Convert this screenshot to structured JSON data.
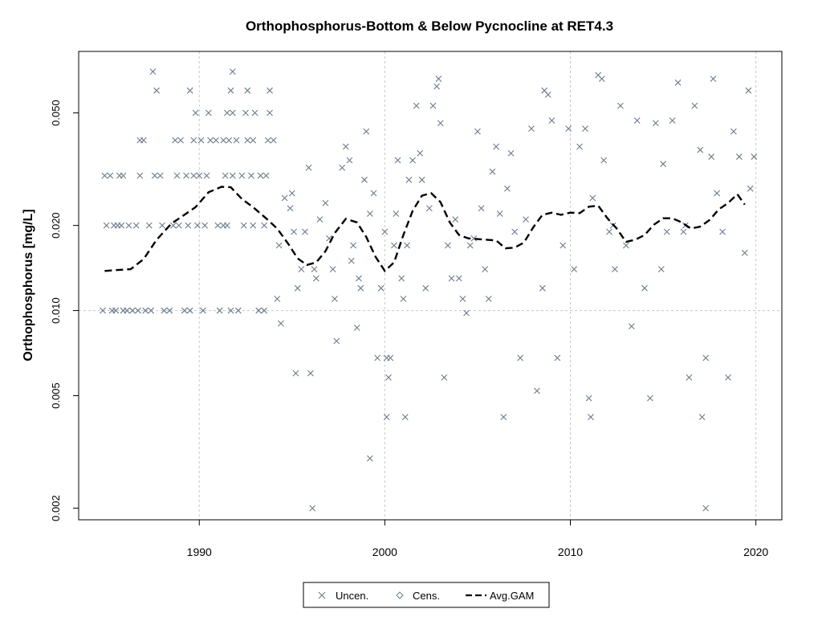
{
  "chart_data": {
    "type": "scatter",
    "title": "Orthophosphorus-Bottom & Below Pycnocline at RET4.3",
    "xlabel": "",
    "ylabel": "Orthophosphorus [mg/L]",
    "x_scale": "linear",
    "y_scale": "log",
    "xlim": [
      1983.5,
      2021.4
    ],
    "ylim": [
      0.00182,
      0.0825
    ],
    "x_ticks": [
      "1990",
      "2000",
      "2010",
      "2020"
    ],
    "x_tick_values": [
      1990,
      2000,
      2010,
      2020
    ],
    "y_ticks": [
      "0.002",
      "0.005",
      "0.010",
      "0.020",
      "0.050"
    ],
    "y_tick_values": [
      0.002,
      0.005,
      0.01,
      0.02,
      0.05
    ],
    "grid": true,
    "legend_position": "bottom-center",
    "colors": {
      "points": "#6b7a8c",
      "gam": "#000000",
      "grid": "#c8c8c8"
    },
    "legend": [
      {
        "label": "Uncen.",
        "marker": "x"
      },
      {
        "label": "Cens.",
        "marker": "diamond"
      },
      {
        "label": "Avg.GAM",
        "marker": "dashed-line"
      }
    ],
    "series": [
      {
        "name": "Uncen.",
        "marker": "x",
        "points": [
          [
            1984.9,
            0.03
          ],
          [
            1985.2,
            0.03
          ],
          [
            1985.7,
            0.03
          ],
          [
            1985.9,
            0.03
          ],
          [
            1986.8,
            0.03
          ],
          [
            1987.6,
            0.03
          ],
          [
            1987.9,
            0.03
          ],
          [
            1988.8,
            0.03
          ],
          [
            1989.3,
            0.03
          ],
          [
            1989.7,
            0.03
          ],
          [
            1990.0,
            0.03
          ],
          [
            1990.4,
            0.03
          ],
          [
            1991.4,
            0.03
          ],
          [
            1991.8,
            0.03
          ],
          [
            1992.3,
            0.03
          ],
          [
            1992.8,
            0.03
          ],
          [
            1993.3,
            0.03
          ],
          [
            1993.6,
            0.03
          ],
          [
            1985.0,
            0.02
          ],
          [
            1985.4,
            0.02
          ],
          [
            1985.6,
            0.02
          ],
          [
            1985.8,
            0.02
          ],
          [
            1986.2,
            0.02
          ],
          [
            1986.6,
            0.02
          ],
          [
            1987.3,
            0.02
          ],
          [
            1988.0,
            0.02
          ],
          [
            1988.6,
            0.02
          ],
          [
            1988.9,
            0.02
          ],
          [
            1989.4,
            0.02
          ],
          [
            1989.9,
            0.02
          ],
          [
            1990.3,
            0.02
          ],
          [
            1991.0,
            0.02
          ],
          [
            1991.3,
            0.02
          ],
          [
            1991.5,
            0.02
          ],
          [
            1992.4,
            0.02
          ],
          [
            1992.9,
            0.02
          ],
          [
            1993.5,
            0.02
          ],
          [
            1984.8,
            0.01
          ],
          [
            1985.3,
            0.01
          ],
          [
            1985.5,
            0.01
          ],
          [
            1985.9,
            0.01
          ],
          [
            1986.1,
            0.01
          ],
          [
            1986.4,
            0.01
          ],
          [
            1986.7,
            0.01
          ],
          [
            1987.1,
            0.01
          ],
          [
            1987.4,
            0.01
          ],
          [
            1988.1,
            0.01
          ],
          [
            1988.4,
            0.01
          ],
          [
            1989.2,
            0.01
          ],
          [
            1989.5,
            0.01
          ],
          [
            1990.2,
            0.01
          ],
          [
            1991.1,
            0.01
          ],
          [
            1991.7,
            0.01
          ],
          [
            1992.1,
            0.01
          ],
          [
            1993.2,
            0.01
          ],
          [
            1993.5,
            0.01
          ],
          [
            1986.8,
            0.04
          ],
          [
            1987.0,
            0.04
          ],
          [
            1988.7,
            0.04
          ],
          [
            1989.0,
            0.04
          ],
          [
            1989.7,
            0.04
          ],
          [
            1990.1,
            0.04
          ],
          [
            1990.6,
            0.04
          ],
          [
            1990.9,
            0.04
          ],
          [
            1991.3,
            0.04
          ],
          [
            1991.6,
            0.04
          ],
          [
            1992.0,
            0.04
          ],
          [
            1992.6,
            0.04
          ],
          [
            1992.9,
            0.04
          ],
          [
            1993.7,
            0.04
          ],
          [
            1994.0,
            0.04
          ],
          [
            1989.8,
            0.05
          ],
          [
            1990.5,
            0.05
          ],
          [
            1991.5,
            0.05
          ],
          [
            1991.8,
            0.05
          ],
          [
            1992.5,
            0.05
          ],
          [
            1993.0,
            0.05
          ],
          [
            1993.8,
            0.05
          ],
          [
            1987.7,
            0.06
          ],
          [
            1989.5,
            0.06
          ],
          [
            1991.7,
            0.06
          ],
          [
            1992.6,
            0.06
          ],
          [
            1993.8,
            0.06
          ],
          [
            1987.5,
            0.07
          ],
          [
            1991.8,
            0.07
          ],
          [
            1994.2,
            0.011
          ],
          [
            1994.4,
            0.009
          ],
          [
            1994.3,
            0.017
          ],
          [
            1994.6,
            0.025
          ],
          [
            1994.9,
            0.023
          ],
          [
            1995.0,
            0.026
          ],
          [
            1995.1,
            0.019
          ],
          [
            1995.3,
            0.012
          ],
          [
            1995.5,
            0.014
          ],
          [
            1995.2,
            0.006
          ],
          [
            1995.7,
            0.019
          ],
          [
            1995.9,
            0.032
          ],
          [
            1996.0,
            0.006
          ],
          [
            1996.2,
            0.014
          ],
          [
            1996.3,
            0.013
          ],
          [
            1996.5,
            0.021
          ],
          [
            1996.8,
            0.024
          ],
          [
            1997.0,
            0.018
          ],
          [
            1997.2,
            0.014
          ],
          [
            1997.3,
            0.011
          ],
          [
            1997.4,
            0.0078
          ],
          [
            1997.7,
            0.032
          ],
          [
            1997.9,
            0.038
          ],
          [
            1998.1,
            0.034
          ],
          [
            1998.2,
            0.015
          ],
          [
            1998.3,
            0.017
          ],
          [
            1998.5,
            0.0087
          ],
          [
            1998.6,
            0.013
          ],
          [
            1998.7,
            0.012
          ],
          [
            1998.9,
            0.029
          ],
          [
            1999.0,
            0.043
          ],
          [
            1999.2,
            0.022
          ],
          [
            1999.4,
            0.026
          ],
          [
            1999.6,
            0.0068
          ],
          [
            1999.8,
            0.012
          ],
          [
            2000.0,
            0.019
          ],
          [
            2000.2,
            0.0058
          ],
          [
            2000.1,
            0.0068
          ],
          [
            2000.3,
            0.0068
          ],
          [
            2000.5,
            0.017
          ],
          [
            2000.6,
            0.022
          ],
          [
            2000.7,
            0.034
          ],
          [
            2000.9,
            0.013
          ],
          [
            2001.0,
            0.011
          ],
          [
            2001.2,
            0.017
          ],
          [
            2001.3,
            0.029
          ],
          [
            2001.5,
            0.034
          ],
          [
            2001.7,
            0.053
          ],
          [
            2001.9,
            0.036
          ],
          [
            2002.0,
            0.029
          ],
          [
            2002.2,
            0.012
          ],
          [
            2002.4,
            0.023
          ],
          [
            2002.6,
            0.053
          ],
          [
            2002.8,
            0.062
          ],
          [
            2003.0,
            0.046
          ],
          [
            2003.2,
            0.0058
          ],
          [
            2003.4,
            0.017
          ],
          [
            2003.6,
            0.013
          ],
          [
            2003.8,
            0.021
          ],
          [
            2004.0,
            0.013
          ],
          [
            2004.2,
            0.011
          ],
          [
            2004.4,
            0.0098
          ],
          [
            2004.6,
            0.017
          ],
          [
            2004.8,
            0.018
          ],
          [
            2005.0,
            0.043
          ],
          [
            2005.2,
            0.023
          ],
          [
            2005.4,
            0.014
          ],
          [
            2005.6,
            0.011
          ],
          [
            2005.8,
            0.031
          ],
          [
            2006.0,
            0.038
          ],
          [
            2006.2,
            0.022
          ],
          [
            2006.4,
            0.0042
          ],
          [
            2006.6,
            0.027
          ],
          [
            2006.8,
            0.036
          ],
          [
            2007.0,
            0.019
          ],
          [
            2007.3,
            0.0068
          ],
          [
            2007.6,
            0.021
          ],
          [
            2007.9,
            0.044
          ],
          [
            2008.2,
            0.0052
          ],
          [
            2008.5,
            0.012
          ],
          [
            2008.8,
            0.058
          ],
          [
            2009.0,
            0.047
          ],
          [
            2009.3,
            0.0068
          ],
          [
            2009.6,
            0.017
          ],
          [
            2009.9,
            0.044
          ],
          [
            2010.2,
            0.014
          ],
          [
            2010.5,
            0.038
          ],
          [
            2010.8,
            0.044
          ],
          [
            2011.0,
            0.0049
          ],
          [
            2011.2,
            0.025
          ],
          [
            2011.5,
            0.068
          ],
          [
            2011.8,
            0.034
          ],
          [
            2012.1,
            0.019
          ],
          [
            2012.4,
            0.014
          ],
          [
            2012.7,
            0.053
          ],
          [
            2013.0,
            0.017
          ],
          [
            2013.3,
            0.0088
          ],
          [
            2013.6,
            0.047
          ],
          [
            2014.0,
            0.012
          ],
          [
            2014.3,
            0.0049
          ],
          [
            2014.6,
            0.046
          ],
          [
            2014.9,
            0.014
          ],
          [
            2015.2,
            0.019
          ],
          [
            2015.5,
            0.047
          ],
          [
            2015.8,
            0.064
          ],
          [
            2016.1,
            0.019
          ],
          [
            2016.4,
            0.0058
          ],
          [
            2016.7,
            0.053
          ],
          [
            2017.0,
            0.037
          ],
          [
            2017.3,
            0.0068
          ],
          [
            2017.6,
            0.035
          ],
          [
            2017.9,
            0.026
          ],
          [
            2018.2,
            0.019
          ],
          [
            2018.5,
            0.0058
          ],
          [
            2018.8,
            0.043
          ],
          [
            2019.1,
            0.035
          ],
          [
            2019.4,
            0.016
          ],
          [
            2019.7,
            0.027
          ],
          [
            1996.1,
            0.002
          ],
          [
            1999.2,
            0.003
          ],
          [
            2000.1,
            0.0042
          ],
          [
            2001.1,
            0.0042
          ],
          [
            2011.1,
            0.0042
          ],
          [
            2017.1,
            0.0042
          ],
          [
            2017.3,
            0.002
          ],
          [
            2002.9,
            0.066
          ],
          [
            2011.7,
            0.066
          ],
          [
            2017.7,
            0.066
          ],
          [
            2019.6,
            0.06
          ],
          [
            2008.6,
            0.06
          ],
          [
            2012.3,
            0.02
          ],
          [
            2015.0,
            0.033
          ],
          [
            2016.2,
            0.02
          ],
          [
            2019.9,
            0.035
          ]
        ]
      },
      {
        "name": "Avg.GAM",
        "marker": "dashed-line",
        "points": [
          [
            1984.9,
            0.0138
          ],
          [
            1985.5,
            0.0139
          ],
          [
            1986.3,
            0.014
          ],
          [
            1987.0,
            0.0152
          ],
          [
            1987.7,
            0.0178
          ],
          [
            1988.5,
            0.0203
          ],
          [
            1989.2,
            0.0218
          ],
          [
            1989.8,
            0.0232
          ],
          [
            1990.5,
            0.0262
          ],
          [
            1991.2,
            0.0274
          ],
          [
            1991.7,
            0.0273
          ],
          [
            1992.3,
            0.0248
          ],
          [
            1992.9,
            0.0232
          ],
          [
            1993.6,
            0.0212
          ],
          [
            1994.2,
            0.0195
          ],
          [
            1994.8,
            0.0172
          ],
          [
            1995.3,
            0.0153
          ],
          [
            1995.8,
            0.0145
          ],
          [
            1996.3,
            0.0148
          ],
          [
            1996.8,
            0.0162
          ],
          [
            1997.3,
            0.0188
          ],
          [
            1997.9,
            0.0211
          ],
          [
            1998.5,
            0.0205
          ],
          [
            1999.0,
            0.0182
          ],
          [
            1999.5,
            0.0155
          ],
          [
            2000.0,
            0.0138
          ],
          [
            2000.5,
            0.0148
          ],
          [
            2001.0,
            0.0185
          ],
          [
            2001.5,
            0.0225
          ],
          [
            2002.0,
            0.0255
          ],
          [
            2002.5,
            0.026
          ],
          [
            2003.0,
            0.0242
          ],
          [
            2003.5,
            0.0205
          ],
          [
            2004.0,
            0.0185
          ],
          [
            2004.5,
            0.018
          ],
          [
            2005.0,
            0.0179
          ],
          [
            2005.5,
            0.0178
          ],
          [
            2006.0,
            0.0177
          ],
          [
            2006.5,
            0.0166
          ],
          [
            2007.0,
            0.0167
          ],
          [
            2007.5,
            0.0174
          ],
          [
            2008.0,
            0.0197
          ],
          [
            2008.5,
            0.0218
          ],
          [
            2009.0,
            0.0222
          ],
          [
            2009.5,
            0.0218
          ],
          [
            2010.0,
            0.0222
          ],
          [
            2010.5,
            0.0221
          ],
          [
            2011.0,
            0.0233
          ],
          [
            2011.5,
            0.0235
          ],
          [
            2012.0,
            0.0212
          ],
          [
            2012.5,
            0.0195
          ],
          [
            2013.0,
            0.0175
          ],
          [
            2013.5,
            0.0178
          ],
          [
            2014.0,
            0.0185
          ],
          [
            2014.5,
            0.0201
          ],
          [
            2015.0,
            0.0212
          ],
          [
            2015.5,
            0.0212
          ],
          [
            2016.0,
            0.0205
          ],
          [
            2016.5,
            0.0195
          ],
          [
            2017.0,
            0.0198
          ],
          [
            2017.5,
            0.0209
          ],
          [
            2018.0,
            0.0228
          ],
          [
            2018.5,
            0.024
          ],
          [
            2019.0,
            0.0258
          ],
          [
            2019.4,
            0.0237
          ]
        ]
      }
    ]
  }
}
